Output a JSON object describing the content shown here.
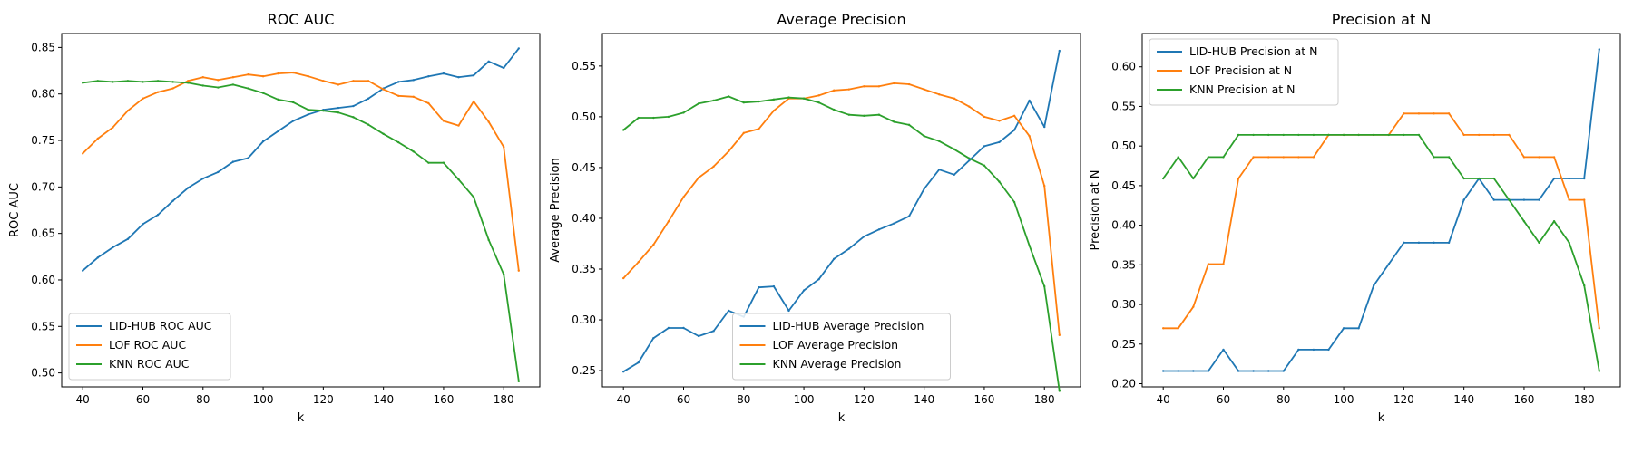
{
  "chart_data": [
    {
      "type": "line",
      "title": "ROC AUC",
      "xlabel": "k",
      "ylabel": "ROC AUC",
      "xlim": [
        33,
        192
      ],
      "ylim": [
        0.485,
        0.865
      ],
      "xticks": [
        40,
        60,
        80,
        100,
        120,
        140,
        160,
        180
      ],
      "yticks": [
        0.5,
        0.55,
        0.6,
        0.65,
        0.7,
        0.75,
        0.8,
        0.85
      ],
      "grid": false,
      "legend": "lower-left",
      "x": [
        40,
        45,
        50,
        55,
        60,
        65,
        70,
        75,
        80,
        85,
        90,
        95,
        100,
        105,
        110,
        115,
        120,
        125,
        130,
        135,
        140,
        145,
        150,
        155,
        160,
        165,
        170,
        175,
        180,
        185
      ],
      "series": [
        {
          "name": "LID-HUB ROC AUC",
          "color": "#1f77b4",
          "values": [
            0.61,
            0.624,
            0.635,
            0.644,
            0.66,
            0.67,
            0.685,
            0.699,
            0.709,
            0.716,
            0.727,
            0.731,
            0.749,
            0.76,
            0.771,
            0.778,
            0.783,
            0.785,
            0.787,
            0.795,
            0.806,
            0.813,
            0.815,
            0.819,
            0.822,
            0.818,
            0.82,
            0.835,
            0.828,
            0.849
          ]
        },
        {
          "name": "LOF ROC AUC",
          "color": "#ff7f0e",
          "values": [
            0.736,
            0.752,
            0.764,
            0.782,
            0.795,
            0.802,
            0.806,
            0.814,
            0.818,
            0.815,
            0.818,
            0.821,
            0.819,
            0.822,
            0.823,
            0.819,
            0.814,
            0.81,
            0.814,
            0.814,
            0.805,
            0.798,
            0.797,
            0.79,
            0.771,
            0.766,
            0.792,
            0.77,
            0.743,
            0.61
          ]
        },
        {
          "name": "KNN ROC AUC",
          "color": "#2ca02c",
          "values": [
            0.812,
            0.814,
            0.813,
            0.814,
            0.813,
            0.814,
            0.813,
            0.812,
            0.809,
            0.807,
            0.81,
            0.806,
            0.801,
            0.794,
            0.791,
            0.783,
            0.782,
            0.78,
            0.775,
            0.767,
            0.757,
            0.748,
            0.738,
            0.726,
            0.726,
            0.708,
            0.689,
            0.643,
            0.606,
            0.491
          ]
        }
      ]
    },
    {
      "type": "line",
      "title": "Average Precision",
      "xlabel": "k",
      "ylabel": "Average Precision",
      "xlim": [
        33,
        192
      ],
      "ylim": [
        0.234,
        0.582
      ],
      "xticks": [
        40,
        60,
        80,
        100,
        120,
        140,
        160,
        180
      ],
      "yticks": [
        0.25,
        0.3,
        0.35,
        0.4,
        0.45,
        0.5,
        0.55
      ],
      "grid": false,
      "legend": "lower-center",
      "x": [
        40,
        45,
        50,
        55,
        60,
        65,
        70,
        75,
        80,
        85,
        90,
        95,
        100,
        105,
        110,
        115,
        120,
        125,
        130,
        135,
        140,
        145,
        150,
        155,
        160,
        165,
        170,
        175,
        180,
        185
      ],
      "series": [
        {
          "name": "LID-HUB Average Precision",
          "color": "#1f77b4",
          "values": [
            0.249,
            0.258,
            0.282,
            0.292,
            0.292,
            0.284,
            0.289,
            0.309,
            0.303,
            0.332,
            0.333,
            0.309,
            0.329,
            0.34,
            0.36,
            0.37,
            0.382,
            0.389,
            0.395,
            0.402,
            0.429,
            0.448,
            0.443,
            0.457,
            0.471,
            0.475,
            0.487,
            0.516,
            0.49,
            0.565
          ]
        },
        {
          "name": "LOF Average Precision",
          "color": "#ff7f0e",
          "values": [
            0.341,
            0.357,
            0.374,
            0.397,
            0.421,
            0.44,
            0.451,
            0.466,
            0.484,
            0.488,
            0.506,
            0.518,
            0.518,
            0.521,
            0.526,
            0.527,
            0.53,
            0.53,
            0.533,
            0.532,
            0.527,
            0.522,
            0.518,
            0.51,
            0.5,
            0.496,
            0.501,
            0.481,
            0.432,
            0.285
          ]
        },
        {
          "name": "KNN Average Precision",
          "color": "#2ca02c",
          "values": [
            0.487,
            0.499,
            0.499,
            0.5,
            0.504,
            0.513,
            0.516,
            0.52,
            0.514,
            0.515,
            0.517,
            0.519,
            0.518,
            0.514,
            0.507,
            0.502,
            0.501,
            0.502,
            0.495,
            0.492,
            0.481,
            0.476,
            0.468,
            0.459,
            0.452,
            0.436,
            0.416,
            0.373,
            0.333,
            0.23
          ]
        }
      ]
    },
    {
      "type": "line",
      "title": "Precision at N",
      "xlabel": "k",
      "ylabel": "Precision at N",
      "xlim": [
        33,
        192
      ],
      "ylim": [
        0.196,
        0.642
      ],
      "xticks": [
        40,
        60,
        80,
        100,
        120,
        140,
        160,
        180
      ],
      "yticks": [
        0.2,
        0.25,
        0.3,
        0.35,
        0.4,
        0.45,
        0.5,
        0.55,
        0.6
      ],
      "grid": false,
      "legend": "top-left",
      "x": [
        40,
        45,
        50,
        55,
        60,
        65,
        70,
        75,
        80,
        85,
        90,
        95,
        100,
        105,
        110,
        115,
        120,
        125,
        130,
        135,
        140,
        145,
        150,
        155,
        160,
        165,
        170,
        175,
        180,
        185
      ],
      "series": [
        {
          "name": "LID-HUB Precision at N",
          "color": "#1f77b4",
          "values": [
            0.216,
            0.216,
            0.216,
            0.216,
            0.243,
            0.216,
            0.216,
            0.216,
            0.216,
            0.243,
            0.243,
            0.243,
            0.27,
            0.27,
            0.324,
            0.351,
            0.378,
            0.378,
            0.378,
            0.378,
            0.432,
            0.459,
            0.432,
            0.432,
            0.432,
            0.432,
            0.459,
            0.459,
            0.459,
            0.622
          ]
        },
        {
          "name": "LOF Precision at N",
          "color": "#ff7f0e",
          "values": [
            0.27,
            0.27,
            0.297,
            0.351,
            0.351,
            0.459,
            0.486,
            0.486,
            0.486,
            0.486,
            0.486,
            0.514,
            0.514,
            0.514,
            0.514,
            0.514,
            0.541,
            0.541,
            0.541,
            0.541,
            0.514,
            0.514,
            0.514,
            0.514,
            0.486,
            0.486,
            0.486,
            0.432,
            0.432,
            0.27
          ]
        },
        {
          "name": "KNN Precision at N",
          "color": "#2ca02c",
          "values": [
            0.459,
            0.486,
            0.459,
            0.486,
            0.486,
            0.514,
            0.514,
            0.514,
            0.514,
            0.514,
            0.514,
            0.514,
            0.514,
            0.514,
            0.514,
            0.514,
            0.514,
            0.514,
            0.486,
            0.486,
            0.459,
            0.459,
            0.459,
            0.432,
            0.405,
            0.378,
            0.405,
            0.378,
            0.324,
            0.216
          ]
        }
      ]
    }
  ]
}
